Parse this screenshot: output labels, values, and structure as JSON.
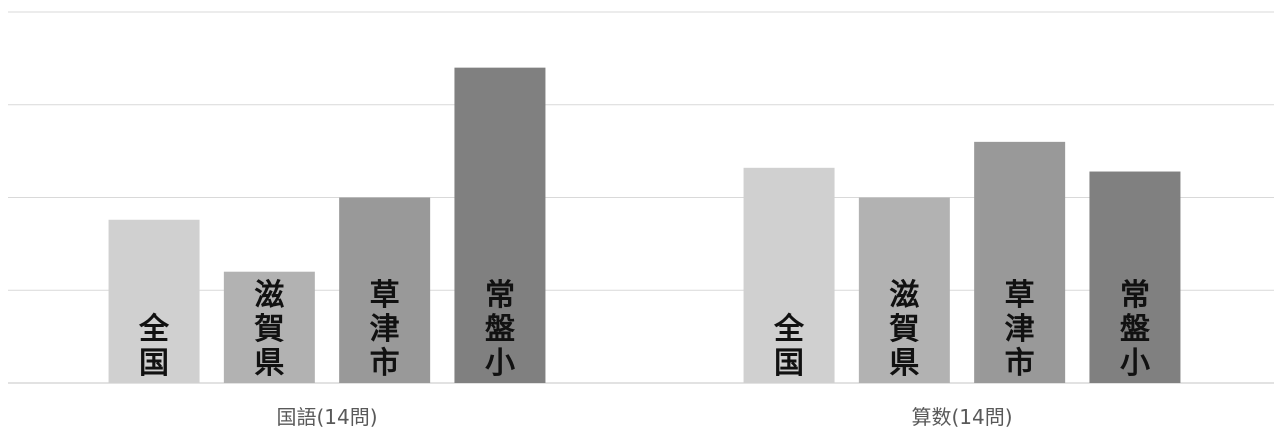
{
  "chart_data": {
    "type": "bar",
    "categories": [
      "国語(14問)",
      "算数(14問)"
    ],
    "series": [
      {
        "name": "全国",
        "color": "#d0d0d0",
        "values": [
          8.8,
          11.6
        ]
      },
      {
        "name": "滋賀県",
        "color": "#b2b2b2",
        "values": [
          6.0,
          10.0
        ]
      },
      {
        "name": "草津市",
        "color": "#999999",
        "values": [
          10.0,
          13.0
        ]
      },
      {
        "name": "常盤小",
        "color": "#808080",
        "values": [
          17.0,
          11.4
        ]
      }
    ],
    "ylim": [
      0,
      20
    ],
    "y_gridlines": [
      0,
      5,
      10,
      15,
      20
    ],
    "y_tick_labels_visible": false,
    "series_labels_inside_bars": true,
    "legend": "none",
    "title": "",
    "xlabel": "",
    "ylabel": ""
  }
}
